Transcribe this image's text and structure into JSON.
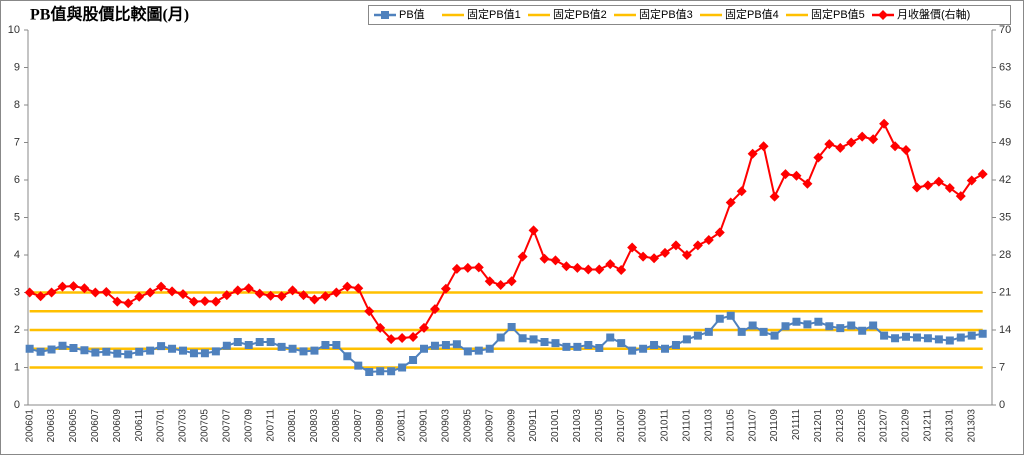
{
  "chart_data": {
    "type": "line",
    "title": "PB值與股價比較圖(月)",
    "categories": [
      "200601",
      null,
      "200603",
      null,
      "200605",
      null,
      "200607",
      null,
      "200609",
      null,
      "200611",
      null,
      "200701",
      null,
      "200703",
      null,
      "200705",
      null,
      "200707",
      null,
      "200709",
      null,
      "200711",
      null,
      "200801",
      null,
      "200803",
      null,
      "200805",
      null,
      "200807",
      null,
      "200809",
      null,
      "200811",
      null,
      "200901",
      null,
      "200903",
      null,
      "200905",
      null,
      "200907",
      null,
      "200909",
      null,
      "200911",
      null,
      "201001",
      null,
      "201003",
      null,
      "201005",
      null,
      "201007",
      null,
      "201009",
      null,
      "201011",
      null,
      "201101",
      null,
      "201103",
      null,
      "201105",
      null,
      "201107",
      null,
      "201109",
      null,
      "201111",
      null,
      "201201",
      null,
      "201203",
      null,
      "201205",
      null,
      "201207",
      null,
      "201209",
      null,
      "201211",
      null,
      "201301",
      null,
      "201303",
      null
    ],
    "ylim": [
      0,
      10
    ],
    "yticks": [
      0,
      1,
      2,
      3,
      4,
      5,
      6,
      7,
      8,
      9,
      10
    ],
    "y2lim": [
      0,
      70
    ],
    "y2ticks": [
      0,
      7,
      14,
      21,
      28,
      35,
      42,
      49,
      56,
      63,
      70
    ],
    "legend": "top",
    "series": [
      {
        "name": "PB值",
        "color": "#4f81bd",
        "marker": "square",
        "values": [
          1.5,
          1.42,
          1.48,
          1.58,
          1.52,
          1.46,
          1.4,
          1.42,
          1.37,
          1.35,
          1.42,
          1.45,
          1.57,
          1.5,
          1.45,
          1.38,
          1.38,
          1.43,
          1.58,
          1.68,
          1.6,
          1.68,
          1.68,
          1.55,
          1.5,
          1.43,
          1.45,
          1.6,
          1.6,
          1.3,
          1.05,
          0.88,
          0.9,
          0.9,
          1.0,
          1.2,
          1.5,
          1.58,
          1.6,
          1.62,
          1.43,
          1.45,
          1.5,
          1.8,
          2.08,
          1.78,
          1.75,
          1.68,
          1.65,
          1.55,
          1.55,
          1.6,
          1.52,
          1.8,
          1.65,
          1.45,
          1.5,
          1.6,
          1.5,
          1.6,
          1.75,
          1.85,
          1.95,
          2.3,
          2.38,
          1.95,
          2.12,
          1.95,
          1.85,
          2.1,
          2.22,
          2.15,
          2.22,
          2.1,
          2.05,
          2.12,
          1.98,
          2.12,
          1.85,
          1.78,
          1.82,
          1.8,
          1.78,
          1.75,
          1.72,
          1.8,
          1.85,
          1.9
        ]
      },
      {
        "name": "固定PB值1",
        "color": "#ffc000",
        "values": [
          1,
          1,
          1,
          1,
          1,
          1,
          1,
          1,
          1,
          1,
          1,
          1,
          1,
          1,
          1,
          1,
          1,
          1,
          1,
          1,
          1,
          1,
          1,
          1,
          1,
          1,
          1,
          1,
          1,
          1,
          1,
          1,
          1,
          1,
          1,
          1,
          1,
          1,
          1,
          1,
          1,
          1,
          1,
          1,
          1,
          1,
          1,
          1,
          1,
          1,
          1,
          1,
          1,
          1,
          1,
          1,
          1,
          1,
          1,
          1,
          1,
          1,
          1,
          1,
          1,
          1,
          1,
          1,
          1,
          1,
          1,
          1,
          1,
          1,
          1,
          1,
          1,
          1,
          1,
          1,
          1,
          1,
          1,
          1,
          1,
          1,
          1,
          1
        ]
      },
      {
        "name": "固定PB值2",
        "color": "#ffc000",
        "values": [
          1.5,
          1.5,
          1.5,
          1.5,
          1.5,
          1.5,
          1.5,
          1.5,
          1.5,
          1.5,
          1.5,
          1.5,
          1.5,
          1.5,
          1.5,
          1.5,
          1.5,
          1.5,
          1.5,
          1.5,
          1.5,
          1.5,
          1.5,
          1.5,
          1.5,
          1.5,
          1.5,
          1.5,
          1.5,
          1.5,
          1.5,
          1.5,
          1.5,
          1.5,
          1.5,
          1.5,
          1.5,
          1.5,
          1.5,
          1.5,
          1.5,
          1.5,
          1.5,
          1.5,
          1.5,
          1.5,
          1.5,
          1.5,
          1.5,
          1.5,
          1.5,
          1.5,
          1.5,
          1.5,
          1.5,
          1.5,
          1.5,
          1.5,
          1.5,
          1.5,
          1.5,
          1.5,
          1.5,
          1.5,
          1.5,
          1.5,
          1.5,
          1.5,
          1.5,
          1.5,
          1.5,
          1.5,
          1.5,
          1.5,
          1.5,
          1.5,
          1.5,
          1.5,
          1.5,
          1.5,
          1.5,
          1.5,
          1.5,
          1.5,
          1.5,
          1.5,
          1.5,
          1.5
        ]
      },
      {
        "name": "固定PB值3",
        "color": "#ffc000",
        "values": [
          2,
          2,
          2,
          2,
          2,
          2,
          2,
          2,
          2,
          2,
          2,
          2,
          2,
          2,
          2,
          2,
          2,
          2,
          2,
          2,
          2,
          2,
          2,
          2,
          2,
          2,
          2,
          2,
          2,
          2,
          2,
          2,
          2,
          2,
          2,
          2,
          2,
          2,
          2,
          2,
          2,
          2,
          2,
          2,
          2,
          2,
          2,
          2,
          2,
          2,
          2,
          2,
          2,
          2,
          2,
          2,
          2,
          2,
          2,
          2,
          2,
          2,
          2,
          2,
          2,
          2,
          2,
          2,
          2,
          2,
          2,
          2,
          2,
          2,
          2,
          2,
          2,
          2,
          2,
          2,
          2,
          2,
          2,
          2,
          2,
          2,
          2,
          2
        ]
      },
      {
        "name": "固定PB值4",
        "color": "#ffc000",
        "values": [
          2.5,
          2.5,
          2.5,
          2.5,
          2.5,
          2.5,
          2.5,
          2.5,
          2.5,
          2.5,
          2.5,
          2.5,
          2.5,
          2.5,
          2.5,
          2.5,
          2.5,
          2.5,
          2.5,
          2.5,
          2.5,
          2.5,
          2.5,
          2.5,
          2.5,
          2.5,
          2.5,
          2.5,
          2.5,
          2.5,
          2.5,
          2.5,
          2.5,
          2.5,
          2.5,
          2.5,
          2.5,
          2.5,
          2.5,
          2.5,
          2.5,
          2.5,
          2.5,
          2.5,
          2.5,
          2.5,
          2.5,
          2.5,
          2.5,
          2.5,
          2.5,
          2.5,
          2.5,
          2.5,
          2.5,
          2.5,
          2.5,
          2.5,
          2.5,
          2.5,
          2.5,
          2.5,
          2.5,
          2.5,
          2.5,
          2.5,
          2.5,
          2.5,
          2.5,
          2.5,
          2.5,
          2.5,
          2.5,
          2.5,
          2.5,
          2.5,
          2.5,
          2.5,
          2.5,
          2.5,
          2.5,
          2.5,
          2.5,
          2.5,
          2.5,
          2.5,
          2.5,
          2.5
        ]
      },
      {
        "name": "固定PB值5",
        "color": "#ffc000",
        "values": [
          3,
          3,
          3,
          3,
          3,
          3,
          3,
          3,
          3,
          3,
          3,
          3,
          3,
          3,
          3,
          3,
          3,
          3,
          3,
          3,
          3,
          3,
          3,
          3,
          3,
          3,
          3,
          3,
          3,
          3,
          3,
          3,
          3,
          3,
          3,
          3,
          3,
          3,
          3,
          3,
          3,
          3,
          3,
          3,
          3,
          3,
          3,
          3,
          3,
          3,
          3,
          3,
          3,
          3,
          3,
          3,
          3,
          3,
          3,
          3,
          3,
          3,
          3,
          3,
          3,
          3,
          3,
          3,
          3,
          3,
          3,
          3,
          3,
          3,
          3,
          3,
          3,
          3,
          3,
          3,
          3,
          3,
          3,
          3,
          3,
          3,
          3,
          3
        ]
      },
      {
        "name": "月收盤價(右軸)",
        "color": "#ff0000",
        "marker": "diamond",
        "axis": "y2",
        "values": [
          21,
          20.3,
          21,
          22.1,
          22.2,
          21.8,
          21,
          21.1,
          19.3,
          19,
          20.2,
          21,
          22.1,
          21.2,
          20.7,
          19.3,
          19.4,
          19.3,
          20.5,
          21.4,
          21.8,
          20.8,
          20.4,
          20.3,
          21.4,
          20.5,
          19.7,
          20.3,
          21,
          22.1,
          21.8,
          17.5,
          14.4,
          12.3,
          12.5,
          12.7,
          14.4,
          17.9,
          21.7,
          25.4,
          25.6,
          25.7,
          23.1,
          22.4,
          23.1,
          27.7,
          32.6,
          27.3,
          27,
          25.9,
          25.6,
          25.3,
          25.3,
          26.3,
          25.2,
          29.4,
          27.7,
          27.4,
          28.4,
          29.8,
          28,
          29.8,
          30.8,
          32.2,
          37.8,
          39.9,
          46.9,
          48.3,
          38.9,
          43.1,
          42.8,
          41.3,
          46.2,
          48.7,
          48,
          49,
          50.1,
          49.6,
          52.5,
          48.3,
          47.6,
          40.6,
          41,
          41.7,
          40.5,
          39,
          41.9,
          43.1
        ]
      }
    ]
  }
}
